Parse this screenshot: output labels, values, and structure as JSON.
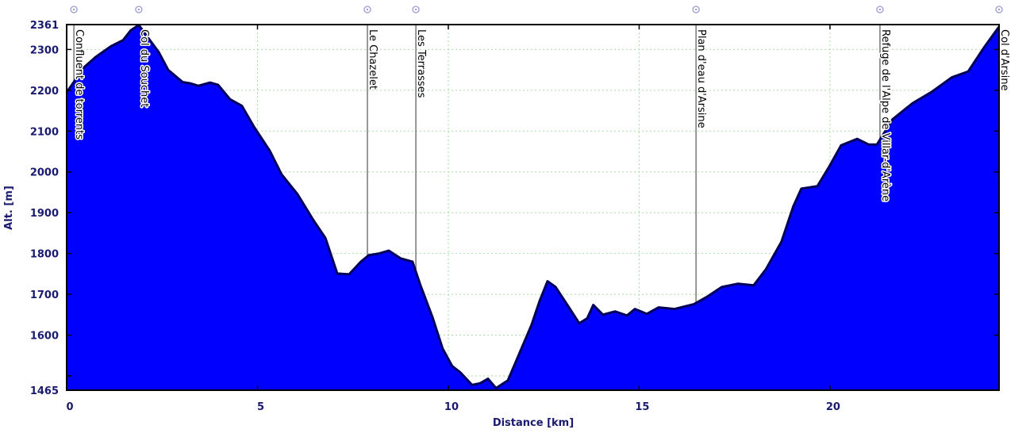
{
  "chart_data": {
    "type": "area",
    "title": "",
    "xlabel": "Distance [km]",
    "ylabel": "Alt. [m]",
    "xlim": [
      0,
      24.43
    ],
    "ylim": [
      1465,
      2361
    ],
    "xticks": [
      0,
      5,
      10,
      15,
      20
    ],
    "yticks": [
      1465,
      1600,
      1700,
      1800,
      1900,
      2000,
      2100,
      2200,
      2300,
      2361
    ],
    "ygrid": [
      1500,
      1600,
      1700,
      1800,
      1900,
      2000,
      2100,
      2200,
      2300
    ],
    "grid": true,
    "colors": {
      "fill": "#0000ff",
      "line": "#00005a",
      "grid": "#a8dca8",
      "axis_text": "#1a1a6e",
      "waypoint_icon": "#9a9ad0"
    },
    "series": [
      {
        "x": [
          0,
          0.23,
          0.44,
          0.75,
          1.16,
          1.48,
          1.68,
          1.89,
          2.1,
          2.41,
          2.66,
          3.04,
          3.24,
          3.45,
          3.76,
          3.97,
          4.28,
          4.59,
          4.91,
          5.32,
          5.63,
          6.05,
          6.47,
          6.78,
          7.09,
          7.4,
          7.71,
          7.92,
          8.19,
          8.44,
          8.75,
          9.06,
          9.27,
          9.58,
          9.85,
          10.1,
          10.31,
          10.62,
          10.83,
          11.04,
          11.25,
          11.56,
          11.87,
          12.18,
          12.39,
          12.6,
          12.81,
          13.12,
          13.43,
          13.64,
          13.8,
          14.05,
          14.37,
          14.68,
          14.89,
          15.2,
          15.51,
          15.93,
          16.44,
          16.76,
          17.17,
          17.59,
          18.0,
          18.32,
          18.73,
          19.04,
          19.25,
          19.67,
          19.98,
          20.29,
          20.71,
          21.02,
          21.23,
          21.64,
          22.16,
          22.68,
          23.2,
          23.62,
          24.03,
          24.43
        ],
        "y": [
          2195,
          2226,
          2255,
          2281,
          2308,
          2323,
          2347,
          2360,
          2333,
          2294,
          2250,
          2220,
          2217,
          2211,
          2219,
          2213,
          2178,
          2162,
          2110,
          2052,
          1994,
          1945,
          1881,
          1838,
          1751,
          1749,
          1780,
          1796,
          1800,
          1807,
          1788,
          1780,
          1722,
          1645,
          1567,
          1524,
          1509,
          1478,
          1482,
          1493,
          1470,
          1489,
          1557,
          1625,
          1683,
          1732,
          1718,
          1674,
          1629,
          1641,
          1674,
          1650,
          1658,
          1648,
          1664,
          1652,
          1668,
          1664,
          1676,
          1693,
          1718,
          1726,
          1722,
          1761,
          1829,
          1916,
          1959,
          1965,
          2013,
          2065,
          2081,
          2067,
          2067,
          2129,
          2168,
          2197,
          2232,
          2246,
          2304,
          2356
        ]
      }
    ],
    "waypoints": [
      {
        "name": "Confluent de torrents",
        "km": 0.19
      },
      {
        "name": "Col du Souchet",
        "km": 1.89
      },
      {
        "name": "Le Chazelet",
        "km": 7.88
      },
      {
        "name": "Les Terrasses",
        "km": 9.15
      },
      {
        "name": "Plan d'eau d'Arsine",
        "km": 16.49
      },
      {
        "name": "Refuge de l'Alpe de Villar-d'Arène",
        "km": 21.31
      },
      {
        "name": "Col d'Arsine",
        "km": 24.43
      }
    ]
  }
}
